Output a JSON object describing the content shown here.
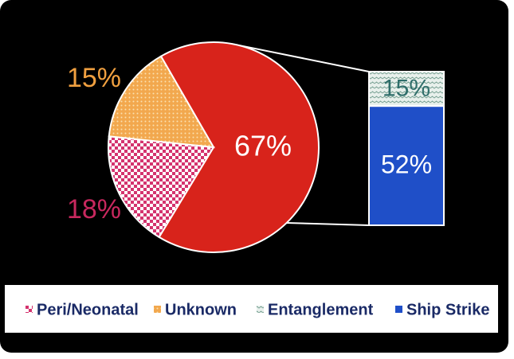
{
  "chart_data": {
    "type": "pie",
    "pie": {
      "values": [
        67,
        18,
        15
      ],
      "value_labels": [
        "67%",
        "18%",
        "15%"
      ],
      "colors": [
        "#d8231b",
        "#d4336e",
        "#f2a84e"
      ],
      "label_colors": [
        "#ffffff",
        "#c8285e",
        "#f0a040"
      ]
    },
    "bar": {
      "values": [
        15,
        52
      ],
      "value_labels": [
        "15%",
        "52%"
      ],
      "colors": [
        "#d6e6de",
        "#1f4fc8"
      ],
      "label_colors": [
        "#2f6e6a",
        "#ffffff"
      ]
    },
    "legend": [
      {
        "name": "Peri/Neonatal",
        "color": "#d4336e"
      },
      {
        "name": "Unknown",
        "color": "#f2a84e"
      },
      {
        "name": "Entanglement",
        "color": "#8fb5a8"
      },
      {
        "name": "Ship Strike",
        "color": "#1f4fc8"
      }
    ]
  }
}
